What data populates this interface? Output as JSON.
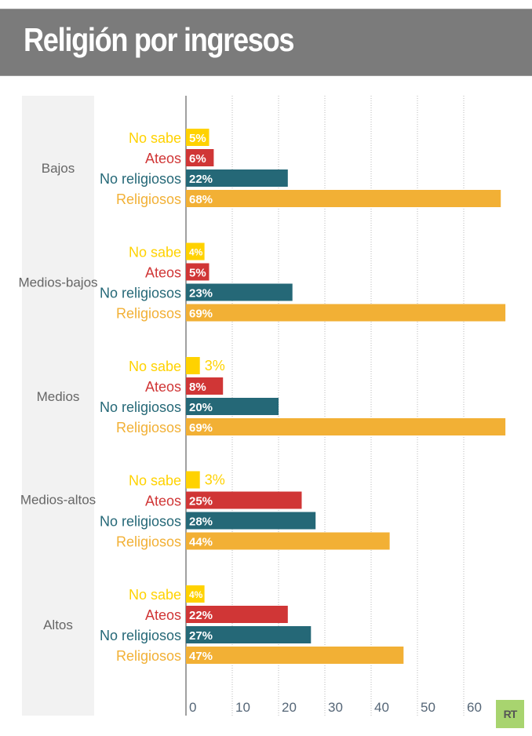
{
  "header": {
    "title": "Religión por ingresos"
  },
  "logo": {
    "text": "RT"
  },
  "colors": {
    "No sabe": "#ffd200",
    "Ateos": "#d03636",
    "No religiosos": "#256877",
    "Religiosos": "#f2b035",
    "header_bg": "#7b7b7b",
    "category_panel": "#f2f2f2",
    "tick_text": "#556677",
    "category_text": "#666666",
    "logo_bg": "#a8d46f"
  },
  "chart_data": {
    "type": "bar",
    "orientation": "horizontal",
    "title": "Religión por ingresos",
    "xlabel": "",
    "ylabel": "",
    "xlim": [
      0,
      70
    ],
    "x_ticks": [
      0,
      10,
      20,
      30,
      40,
      50,
      60
    ],
    "grid": "vertical dotted",
    "unit": "%",
    "series_names": [
      "No sabe",
      "Ateos",
      "No religiosos",
      "Religiosos"
    ],
    "groups": [
      {
        "category": "Bajos",
        "bars": [
          {
            "series": "No sabe",
            "value": 5,
            "label": "5%"
          },
          {
            "series": "Ateos",
            "value": 6,
            "label": "6%"
          },
          {
            "series": "No religiosos",
            "value": 22,
            "label": "22%"
          },
          {
            "series": "Religiosos",
            "value": 68,
            "label": "68%"
          }
        ]
      },
      {
        "category": "Medios-bajos",
        "bars": [
          {
            "series": "No sabe",
            "value": 4,
            "label": "4%"
          },
          {
            "series": "Ateos",
            "value": 5,
            "label": "5%"
          },
          {
            "series": "No religiosos",
            "value": 23,
            "label": "23%"
          },
          {
            "series": "Religiosos",
            "value": 69,
            "label": "69%"
          }
        ]
      },
      {
        "category": "Medios",
        "bars": [
          {
            "series": "No sabe",
            "value": 3,
            "label": "3%"
          },
          {
            "series": "Ateos",
            "value": 8,
            "label": "8%"
          },
          {
            "series": "No religiosos",
            "value": 20,
            "label": "20%"
          },
          {
            "series": "Religiosos",
            "value": 69,
            "label": "69%"
          }
        ]
      },
      {
        "category": "Medios-altos",
        "bars": [
          {
            "series": "No sabe",
            "value": 3,
            "label": "3%"
          },
          {
            "series": "Ateos",
            "value": 25,
            "label": "25%"
          },
          {
            "series": "No religiosos",
            "value": 28,
            "label": "28%"
          },
          {
            "series": "Religiosos",
            "value": 44,
            "label": "44%"
          }
        ]
      },
      {
        "category": "Altos",
        "bars": [
          {
            "series": "No sabe",
            "value": 4,
            "label": "4%"
          },
          {
            "series": "Ateos",
            "value": 22,
            "label": "22%"
          },
          {
            "series": "No religiosos",
            "value": 27,
            "label": "27%"
          },
          {
            "series": "Religiosos",
            "value": 47,
            "label": "47%"
          }
        ]
      }
    ]
  }
}
